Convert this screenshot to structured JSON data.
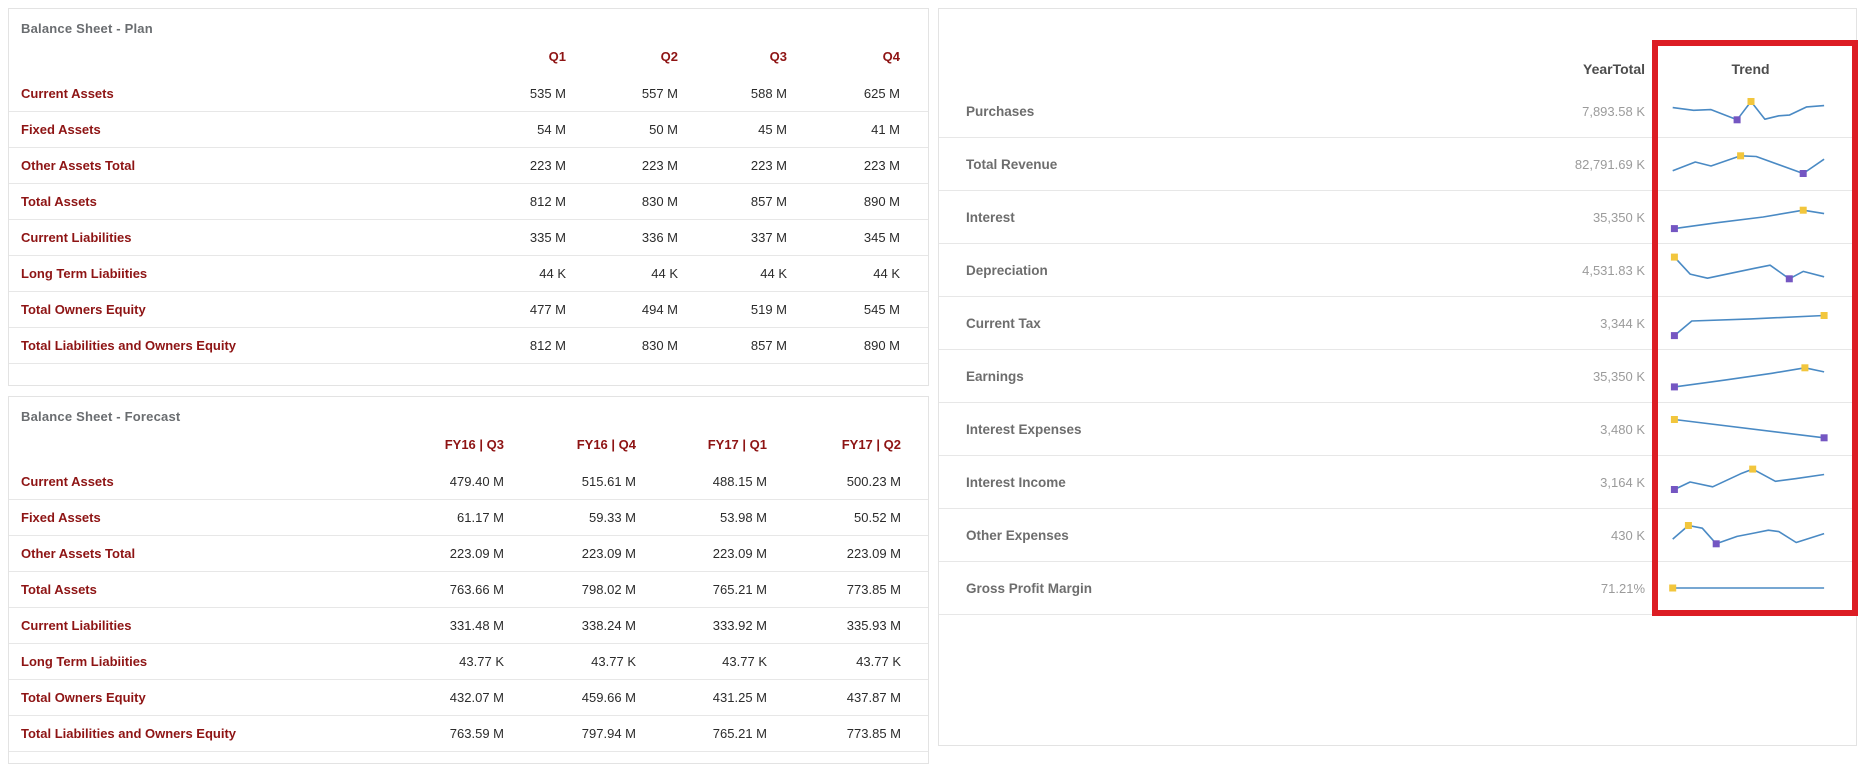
{
  "colors": {
    "maroon": "#8e1414",
    "value_text": "#2b2b2b",
    "title_gray": "#6a6d70",
    "kpi_label": "#6d6d6d",
    "kpi_value": "#9b9b9b",
    "header_gray": "#4d4d4d",
    "separator": "#e7e7e7",
    "highlight": "#dc1d24",
    "spark_line": "#4a8ac4",
    "spark_max": "#f2c63d",
    "spark_min": "#7456c2"
  },
  "plan_table": {
    "title": "Balance Sheet - Plan",
    "columns": [
      "Q1",
      "Q2",
      "Q3",
      "Q4"
    ],
    "rows": [
      {
        "label": "Current Assets",
        "values": [
          "535 M",
          "557 M",
          "588 M",
          "625 M"
        ]
      },
      {
        "label": "Fixed Assets",
        "values": [
          "54 M",
          "50 M",
          "45 M",
          "41 M"
        ]
      },
      {
        "label": "Other Assets Total",
        "values": [
          "223 M",
          "223 M",
          "223 M",
          "223 M"
        ]
      },
      {
        "label": "Total Assets",
        "values": [
          "812 M",
          "830 M",
          "857 M",
          "890 M"
        ]
      },
      {
        "label": "Current Liabilities",
        "values": [
          "335 M",
          "336 M",
          "337 M",
          "345 M"
        ]
      },
      {
        "label": "Long Term Liabiities",
        "values": [
          "44 K",
          "44 K",
          "44 K",
          "44 K"
        ]
      },
      {
        "label": "Total Owners Equity",
        "values": [
          "477 M",
          "494 M",
          "519 M",
          "545 M"
        ]
      },
      {
        "label": "Total Liabilities and Owners Equity",
        "values": [
          "812 M",
          "830 M",
          "857 M",
          "890 M"
        ]
      }
    ]
  },
  "forecast_table": {
    "title": "Balance Sheet - Forecast",
    "columns": [
      "FY16 | Q3",
      "FY16 | Q4",
      "FY17 | Q1",
      "FY17 | Q2"
    ],
    "rows": [
      {
        "label": "Current Assets",
        "values": [
          "479.40 M",
          "515.61 M",
          "488.15 M",
          "500.23 M"
        ]
      },
      {
        "label": "Fixed Assets",
        "values": [
          "61.17 M",
          "59.33 M",
          "53.98 M",
          "50.52 M"
        ]
      },
      {
        "label": "Other Assets Total",
        "values": [
          "223.09 M",
          "223.09 M",
          "223.09 M",
          "223.09 M"
        ]
      },
      {
        "label": "Total Assets",
        "values": [
          "763.66 M",
          "798.02 M",
          "765.21 M",
          "773.85 M"
        ]
      },
      {
        "label": "Current Liabilities",
        "values": [
          "331.48 M",
          "338.24 M",
          "333.92 M",
          "335.93 M"
        ]
      },
      {
        "label": "Long Term Liabiities",
        "values": [
          "43.77 K",
          "43.77 K",
          "43.77 K",
          "43.77 K"
        ]
      },
      {
        "label": "Total Owners Equity",
        "values": [
          "432.07 M",
          "459.66 M",
          "431.25 M",
          "437.87 M"
        ]
      },
      {
        "label": "Total Liabilities and Owners Equity",
        "values": [
          "763.59 M",
          "797.94 M",
          "765.21 M",
          "773.85 M"
        ]
      }
    ]
  },
  "kpi_table": {
    "columns": {
      "year_total": "YearTotal",
      "trend": "Trend"
    },
    "rows": [
      {
        "label": "Purchases",
        "year_total": "7,893.58 K",
        "spark": {
          "points": [
            [
              5,
              40
            ],
            [
              17,
              48
            ],
            [
              27,
              46
            ],
            [
              42,
              76
            ],
            [
              50,
              22
            ],
            [
              58,
              74
            ],
            [
              66,
              64
            ],
            [
              72,
              62
            ],
            [
              82,
              38
            ],
            [
              92,
              34
            ]
          ],
          "max": 4,
          "min": 3
        }
      },
      {
        "label": "Total Revenue",
        "year_total": "82,791.69 K",
        "spark": {
          "points": [
            [
              5,
              70
            ],
            [
              18,
              44
            ],
            [
              27,
              56
            ],
            [
              44,
              26
            ],
            [
              53,
              28
            ],
            [
              80,
              78
            ],
            [
              92,
              36
            ]
          ],
          "max": 3,
          "min": 5
        }
      },
      {
        "label": "Interest",
        "year_total": "35,350 K",
        "spark": {
          "points": [
            [
              6,
              84
            ],
            [
              30,
              67
            ],
            [
              57,
              50
            ],
            [
              80,
              30
            ],
            [
              92,
              40
            ]
          ],
          "max": 3,
          "min": 0
        }
      },
      {
        "label": "Depreciation",
        "year_total": "4,531.83 K",
        "spark": {
          "points": [
            [
              6,
              12
            ],
            [
              15,
              62
            ],
            [
              25,
              74
            ],
            [
              40,
              58
            ],
            [
              52,
              45
            ],
            [
              61,
              36
            ],
            [
              72,
              76
            ],
            [
              80,
              54
            ],
            [
              92,
              70
            ]
          ],
          "max": 0,
          "min": 6
        }
      },
      {
        "label": "Current Tax",
        "year_total": "3,344 K",
        "spark": {
          "points": [
            [
              6,
              87
            ],
            [
              16,
              44
            ],
            [
              50,
              38
            ],
            [
              92,
              28
            ]
          ],
          "max": 3,
          "min": 0
        }
      },
      {
        "label": "Earnings",
        "year_total": "35,350 K",
        "spark": {
          "points": [
            [
              6,
              82
            ],
            [
              35,
              62
            ],
            [
              62,
              42
            ],
            [
              81,
              26
            ],
            [
              92,
              38
            ]
          ],
          "max": 3,
          "min": 0
        }
      },
      {
        "label": "Interest Expenses",
        "year_total": "3,480 K",
        "spark": {
          "points": [
            [
              6,
              22
            ],
            [
              92,
              76
            ]
          ],
          "max": 0,
          "min": 1
        }
      },
      {
        "label": "Interest Income",
        "year_total": "3,164 K",
        "spark": {
          "points": [
            [
              6,
              72
            ],
            [
              15,
              50
            ],
            [
              28,
              64
            ],
            [
              44,
              26
            ],
            [
              51,
              12
            ],
            [
              64,
              48
            ],
            [
              76,
              40
            ],
            [
              92,
              28
            ]
          ],
          "max": 4,
          "min": 0
        }
      },
      {
        "label": "Other Expenses",
        "year_total": "430 K",
        "spark": {
          "points": [
            [
              5,
              62
            ],
            [
              14,
              22
            ],
            [
              22,
              30
            ],
            [
              30,
              76
            ],
            [
              42,
              54
            ],
            [
              52,
              44
            ],
            [
              60,
              36
            ],
            [
              66,
              40
            ],
            [
              76,
              72
            ],
            [
              92,
              46
            ]
          ],
          "max": 1,
          "min": 3
        }
      },
      {
        "label": "Gross Profit Margin",
        "year_total": "71.21%",
        "spark": {
          "points": [
            [
              5,
              50
            ],
            [
              92,
              50
            ]
          ],
          "max": 0,
          "min": null
        }
      }
    ]
  },
  "annotation": {
    "highlighted_column": "Trend",
    "shape": "rectangle"
  }
}
